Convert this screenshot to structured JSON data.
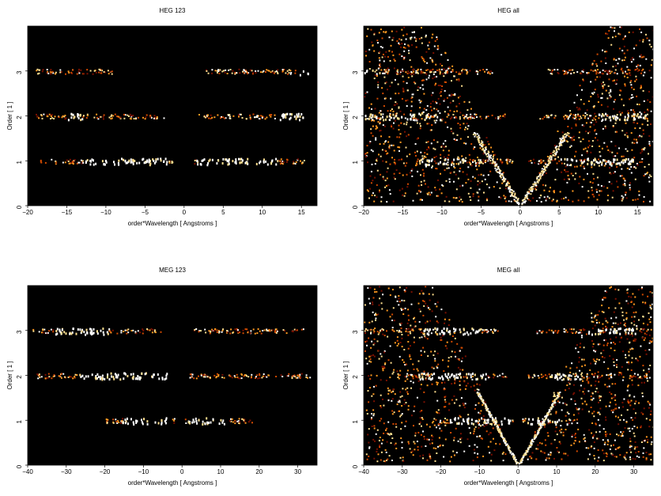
{
  "chart_data": [
    {
      "type": "heatmap",
      "title": "HEG 123",
      "xlabel": "order*Wavelength [ Angstroms ]",
      "ylabel": "Order [ 1 ]",
      "xlim": [
        -20,
        17
      ],
      "ylim": [
        0,
        4
      ],
      "xticks": [
        -20,
        -15,
        -10,
        -5,
        0,
        5,
        10,
        15
      ],
      "yticks": [
        0,
        1,
        2,
        3
      ],
      "colormap": [
        "#000000",
        "#7a1000",
        "#d24a00",
        "#ff9a20",
        "#ffe090",
        "#ffffff"
      ],
      "bands": [
        {
          "order": 1,
          "x_ranges": [
            [
              -18.5,
              -1.5
            ],
            [
              1.2,
              15.3
            ]
          ],
          "bright": [
            [
              -13,
              -2
            ],
            [
              1.5,
              12
            ]
          ]
        },
        {
          "order": 2,
          "x_ranges": [
            [
              -19.0,
              -2.5
            ],
            [
              1.8,
              15.5
            ]
          ],
          "bright": [
            [
              -15,
              -13
            ],
            [
              12,
              15.5
            ]
          ]
        },
        {
          "order": 3,
          "x_ranges": [
            [
              -19.0,
              -9.0
            ],
            [
              2.7,
              15.8
            ]
          ],
          "bright": [
            [
              14.5,
              15.8
            ]
          ]
        }
      ]
    },
    {
      "type": "heatmap",
      "title": "HEG all",
      "xlabel": "order*Wavelength [ Angstroms ]",
      "ylabel": "Order [ 1 ]",
      "xlim": [
        -20,
        17
      ],
      "ylim": [
        0,
        4
      ],
      "xticks": [
        -20,
        -15,
        -10,
        -5,
        0,
        5,
        10,
        15
      ],
      "yticks": [
        0,
        1,
        2,
        3
      ],
      "colormap": [
        "#000000",
        "#7a1000",
        "#d24a00",
        "#ff9a20",
        "#ffe090",
        "#ffffff"
      ],
      "bands": [
        {
          "order": 1,
          "x_ranges": [
            [
              -13.5,
              -1.0
            ],
            [
              1.0,
              15.8
            ]
          ],
          "bright": [
            [
              -13,
              -5
            ],
            [
              5,
              15
            ]
          ]
        },
        {
          "order": 2,
          "x_ranges": [
            [
              -20,
              -2.0
            ],
            [
              2.0,
              16.5
            ]
          ],
          "bright": [
            [
              -20,
              -10
            ],
            [
              10,
              16
            ]
          ]
        },
        {
          "order": 3,
          "x_ranges": [
            [
              -20,
              -3.5
            ],
            [
              3.5,
              16.5
            ]
          ],
          "bright": [
            [
              -20,
              -18
            ]
          ]
        }
      ]
    },
    {
      "type": "heatmap",
      "title": "MEG 123",
      "xlabel": "order*Wavelength [ Angstroms ]",
      "ylabel": "Order [ 1 ]",
      "xlim": [
        -40,
        35
      ],
      "ylim": [
        0,
        4
      ],
      "xticks": [
        -40,
        -30,
        -20,
        -10,
        0,
        10,
        20,
        30
      ],
      "yticks": [
        0,
        1,
        2,
        3
      ],
      "colormap": [
        "#000000",
        "#7a1000",
        "#d24a00",
        "#ff9a20",
        "#ffe090",
        "#ffffff"
      ],
      "bands": [
        {
          "order": 1,
          "x_ranges": [
            [
              -20,
              -2.0
            ],
            [
              0.5,
              18.0
            ]
          ],
          "bright": [
            [
              -15,
              -3
            ],
            [
              1,
              12
            ]
          ]
        },
        {
          "order": 2,
          "x_ranges": [
            [
              -38,
              -3.5
            ],
            [
              1.8,
              33.0
            ]
          ],
          "bright": [
            [
              -27,
              -4
            ]
          ]
        },
        {
          "order": 3,
          "x_ranges": [
            [
              -39,
              -5.5
            ],
            [
              3.0,
              31.5
            ]
          ],
          "bright": [
            [
              -33,
              -19
            ]
          ]
        }
      ]
    },
    {
      "type": "heatmap",
      "title": "MEG all",
      "xlabel": "order*Wavelength [ Angstroms ]",
      "ylabel": "Order [ 1 ]",
      "xlim": [
        -40,
        35
      ],
      "ylim": [
        0,
        4
      ],
      "xticks": [
        -40,
        -30,
        -20,
        -10,
        0,
        10,
        20,
        30
      ],
      "yticks": [
        0,
        1,
        2,
        3
      ],
      "colormap": [
        "#000000",
        "#7a1000",
        "#d24a00",
        "#ff9a20",
        "#ffe090",
        "#ffffff"
      ],
      "bands": [
        {
          "order": 1,
          "x_ranges": [
            [
              -20,
              -1.0
            ],
            [
              1.0,
              14.5
            ]
          ],
          "bright": [
            [
              -18,
              -2
            ],
            [
              2,
              13
            ]
          ]
        },
        {
          "order": 2,
          "x_ranges": [
            [
              -32,
              -2.5
            ],
            [
              2.5,
              34.0
            ]
          ],
          "bright": [
            [
              -26,
              -8
            ],
            [
              8,
              16
            ]
          ]
        },
        {
          "order": 3,
          "x_ranges": [
            [
              -40,
              -5.0
            ],
            [
              4.5,
              33.0
            ]
          ],
          "bright": [
            [
              -25,
              -10
            ],
            [
              18,
              31
            ]
          ]
        }
      ]
    }
  ]
}
